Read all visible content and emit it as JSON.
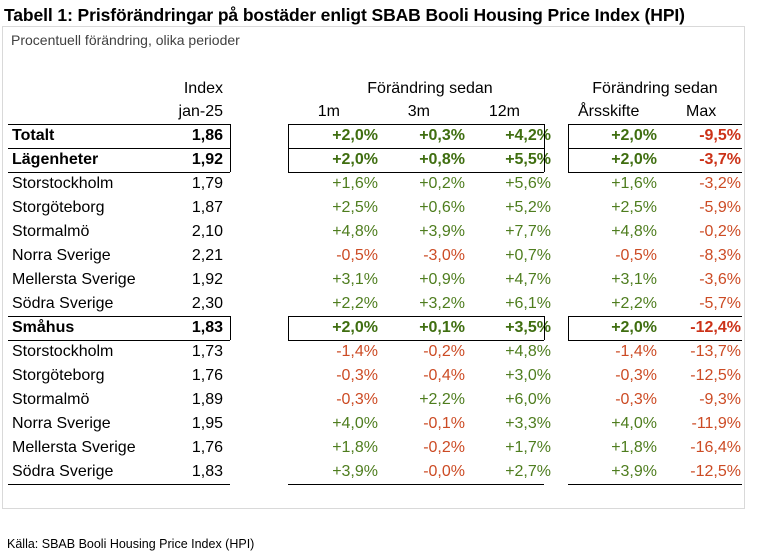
{
  "title": "Tabell 1: Prisförändringar på bostäder enligt SBAB Booli Housing Price Index (HPI)",
  "subtitle": "Procentuell förändring, olika perioder",
  "headers": {
    "index_top": "Index",
    "index_bottom": "jan-25",
    "group1": "Förändring sedan",
    "group2": "Förändring sedan",
    "m1": "1m",
    "m3": "3m",
    "m12": "12m",
    "ars": "Årsskifte",
    "max": "Max"
  },
  "rows": [
    {
      "label": "Totalt",
      "index": "1,86",
      "m1": "+2,0%",
      "m3": "+0,3%",
      "m12": "+4,2%",
      "ars": "+2,0%",
      "max": "-9,5%",
      "bold": true
    },
    {
      "label": "Lägenheter",
      "index": "1,92",
      "m1": "+2,0%",
      "m3": "+0,8%",
      "m12": "+5,5%",
      "ars": "+2,0%",
      "max": "-3,7%",
      "bold": true
    },
    {
      "label": "Storstockholm",
      "index": "1,79",
      "m1": "+1,6%",
      "m3": "+0,2%",
      "m12": "+5,6%",
      "ars": "+1,6%",
      "max": "-3,2%",
      "bold": false
    },
    {
      "label": "Storgöteborg",
      "index": "1,87",
      "m1": "+2,5%",
      "m3": "+0,6%",
      "m12": "+5,2%",
      "ars": "+2,5%",
      "max": "-5,9%",
      "bold": false
    },
    {
      "label": "Stormalmö",
      "index": "2,10",
      "m1": "+4,8%",
      "m3": "+3,9%",
      "m12": "+7,7%",
      "ars": "+4,8%",
      "max": "-0,2%",
      "bold": false
    },
    {
      "label": "Norra Sverige",
      "index": "2,21",
      "m1": "-0,5%",
      "m3": "-3,0%",
      "m12": "+0,7%",
      "ars": "-0,5%",
      "max": "-8,3%",
      "bold": false
    },
    {
      "label": "Mellersta Sverige",
      "index": "1,92",
      "m1": "+3,1%",
      "m3": "+0,9%",
      "m12": "+4,7%",
      "ars": "+3,1%",
      "max": "-3,6%",
      "bold": false
    },
    {
      "label": "Södra Sverige",
      "index": "2,30",
      "m1": "+2,2%",
      "m3": "+3,2%",
      "m12": "+6,1%",
      "ars": "+2,2%",
      "max": "-5,7%",
      "bold": false
    },
    {
      "label": "Småhus",
      "index": "1,83",
      "m1": "+2,0%",
      "m3": "+0,1%",
      "m12": "+3,5%",
      "ars": "+2,0%",
      "max": "-12,4%",
      "bold": true
    },
    {
      "label": "Storstockholm",
      "index": "1,73",
      "m1": "-1,4%",
      "m3": "-0,2%",
      "m12": "+4,8%",
      "ars": "-1,4%",
      "max": "-13,7%",
      "bold": false
    },
    {
      "label": "Storgöteborg",
      "index": "1,76",
      "m1": "-0,3%",
      "m3": "-0,4%",
      "m12": "+3,0%",
      "ars": "-0,3%",
      "max": "-12,5%",
      "bold": false
    },
    {
      "label": "Stormalmö",
      "index": "1,89",
      "m1": "-0,3%",
      "m3": "+2,2%",
      "m12": "+6,0%",
      "ars": "-0,3%",
      "max": "-9,3%",
      "bold": false
    },
    {
      "label": "Norra Sverige",
      "index": "1,95",
      "m1": "+4,0%",
      "m3": "-0,1%",
      "m12": "+3,3%",
      "ars": "+4,0%",
      "max": "-11,9%",
      "bold": false
    },
    {
      "label": "Mellersta Sverige",
      "index": "1,76",
      "m1": "+1,8%",
      "m3": "-0,2%",
      "m12": "+1,7%",
      "ars": "+1,8%",
      "max": "-16,4%",
      "bold": false
    },
    {
      "label": "Södra Sverige",
      "index": "1,83",
      "m1": "+3,9%",
      "m3": "-0,0%",
      "m12": "+2,7%",
      "ars": "+3,9%",
      "max": "-12,5%",
      "bold": false
    }
  ],
  "colors": {
    "positive": "#4e7d1e",
    "negative": "#cc4b24"
  },
  "source": "Källa: SBAB Booli Housing Price Index (HPI)"
}
